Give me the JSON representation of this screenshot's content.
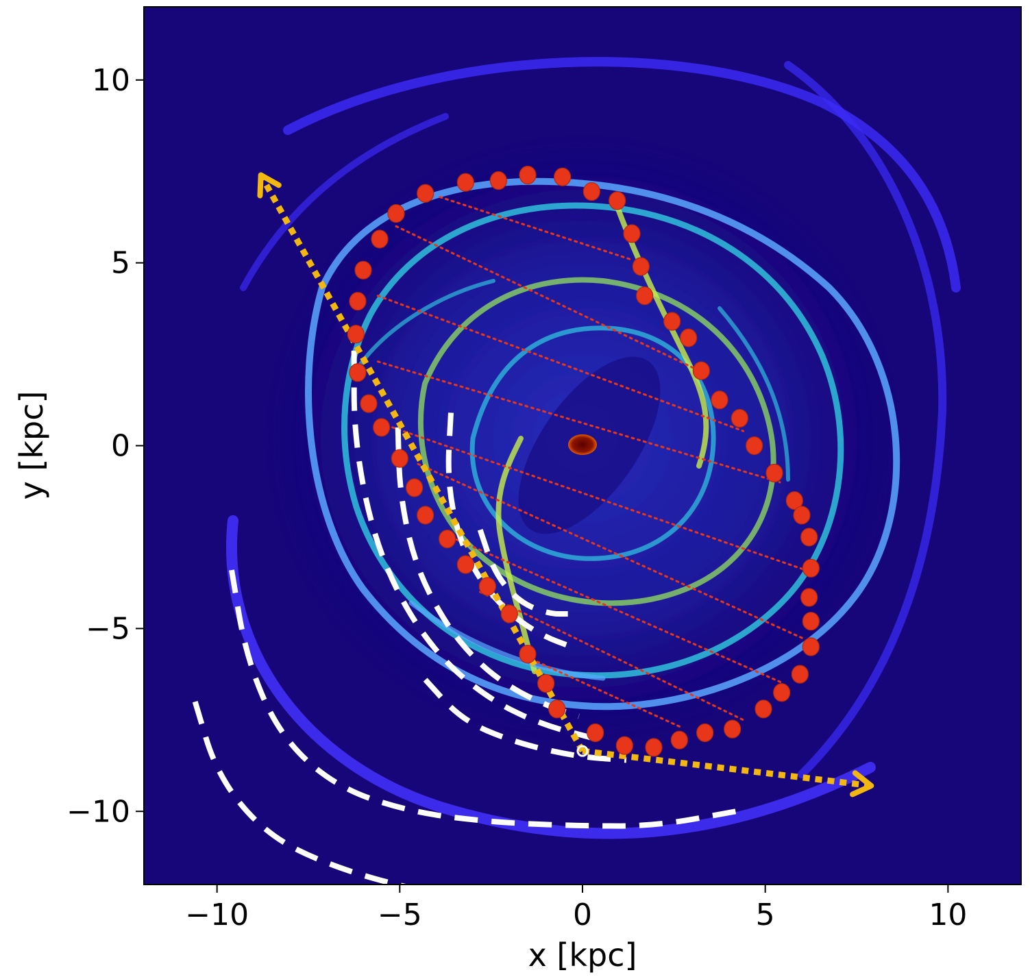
{
  "chart_data": {
    "type": "scatter",
    "title": "",
    "xlabel": "x [kpc]",
    "ylabel": "y [kpc]",
    "xlim": [
      -12,
      12
    ],
    "ylim": [
      -12,
      12
    ],
    "xticks": [
      -10,
      -5,
      0,
      5,
      10
    ],
    "yticks": [
      -10,
      -5,
      0,
      5,
      10
    ],
    "xtick_labels": [
      "−10",
      "−5",
      "0",
      "5",
      "10"
    ],
    "ytick_labels": [
      "−10",
      "−5",
      "0",
      "5",
      "10"
    ],
    "grid": false,
    "legend": "none",
    "colors": {
      "background": "#17057a",
      "arm": "#3b2bf5",
      "arm_glow": "#5aa8ff",
      "gas_cyan": "#33d9e8",
      "gas_green": "#9df05a",
      "markers": "#e8361a",
      "hatch": "#e8361a",
      "arrows": "#f2b711",
      "dashed_arcs": "#ffffff",
      "center": "#7a0a00"
    },
    "series": [
      {
        "type": "scatter",
        "marker": "filled-circle",
        "color": "#e8361a",
        "x": [
          -4.3,
          -3.2,
          -2.3,
          -1.5,
          -0.55,
          0.25,
          0.95,
          1.35,
          1.6,
          1.7,
          2.45,
          2.9,
          3.25,
          3.75,
          4.3,
          4.7,
          5.25,
          5.8,
          6.0,
          6.2,
          6.25,
          6.2,
          6.25,
          6.25,
          5.95,
          5.45,
          4.95,
          4.1,
          3.35,
          2.65,
          1.95,
          1.15,
          0.35,
          -0.7,
          -1.0,
          -1.5,
          -2.0,
          -2.6,
          -3.2,
          -3.7,
          -4.3,
          -4.6,
          -5.0,
          -5.5,
          -5.85,
          -6.15,
          -6.2,
          -6.15,
          -6.0,
          -5.55,
          -5.1
        ],
        "y": [
          6.9,
          7.2,
          7.25,
          7.4,
          7.35,
          6.95,
          6.7,
          5.8,
          4.9,
          4.1,
          3.4,
          2.95,
          2.05,
          1.25,
          0.75,
          0.0,
          -0.75,
          -1.5,
          -1.9,
          -2.5,
          -3.35,
          -4.15,
          -4.8,
          -5.5,
          -6.25,
          -6.75,
          -7.2,
          -7.75,
          -7.85,
          -8.05,
          -8.25,
          -8.2,
          -7.85,
          -7.2,
          -6.5,
          -5.7,
          -4.6,
          -3.85,
          -3.25,
          -2.55,
          -1.9,
          -1.15,
          -0.35,
          0.5,
          1.15,
          2.0,
          3.05,
          3.95,
          4.8,
          5.65,
          6.35
        ]
      },
      {
        "type": "line",
        "style": "dotted",
        "color": "#e8361a",
        "segments": [
          [
            [
              -3.9,
              6.8
            ],
            [
              1.3,
              5.1
            ]
          ],
          [
            [
              -5.1,
              6.0
            ],
            [
              3.3,
              2.0
            ]
          ],
          [
            [
              -5.6,
              4.1
            ],
            [
              4.4,
              0.4
            ]
          ],
          [
            [
              -5.6,
              2.3
            ],
            [
              5.4,
              -1.0
            ]
          ],
          [
            [
              -5.2,
              0.5
            ],
            [
              6.1,
              -3.4
            ]
          ],
          [
            [
              -4.5,
              -0.5
            ],
            [
              6.1,
              -5.3
            ]
          ],
          [
            [
              -3.6,
              -2.5
            ],
            [
              5.5,
              -6.5
            ]
          ],
          [
            [
              -2.8,
              -4.0
            ],
            [
              4.4,
              -7.5
            ]
          ],
          [
            [
              -1.7,
              -5.7
            ],
            [
              2.7,
              -7.7
            ]
          ]
        ]
      },
      {
        "type": "line",
        "style": "dotted-arrow",
        "color": "#f2b711",
        "segments": [
          [
            [
              0.0,
              -8.35
            ],
            [
              -8.8,
              7.4
            ]
          ],
          [
            [
              0.0,
              -8.35
            ],
            [
              7.9,
              -9.3
            ]
          ]
        ]
      },
      {
        "type": "line",
        "style": "dashed",
        "color": "#ffffff",
        "arcs_x": [
          [
            -9.6,
            -9.2,
            -8.3,
            -6.8,
            -4.8,
            -2.5,
            0.0,
            2.0,
            4.2
          ],
          [
            -6.25,
            -6.25,
            -5.8,
            -5.0,
            -3.9,
            -2.6,
            -1.2,
            0.3
          ],
          [
            -5.05,
            -5.0,
            -4.6,
            -3.8,
            -2.9,
            -2.0,
            -1.0,
            -0.1
          ],
          [
            -3.6,
            -3.7,
            -3.4,
            -2.8,
            -2.0,
            -1.1,
            -0.3
          ],
          [
            -2.8,
            -2.4,
            -1.7,
            -0.9,
            -0.4
          ],
          [
            -4.3,
            -3.3,
            -1.9,
            -0.2,
            1.2
          ],
          [
            -10.6,
            -10.0,
            -8.7,
            -6.9,
            -4.4,
            -2.7
          ]
        ],
        "arcs_y": [
          [
            -3.4,
            -5.8,
            -7.9,
            -9.3,
            -10.0,
            -10.3,
            -10.4,
            -10.4,
            -10.0
          ],
          [
            2.6,
            0.3,
            -2.2,
            -4.2,
            -5.8,
            -6.9,
            -7.6,
            -8.0
          ],
          [
            0.5,
            -1.3,
            -3.2,
            -4.8,
            -5.9,
            -6.6,
            -7.1,
            -7.4
          ],
          [
            0.9,
            -0.9,
            -2.5,
            -3.7,
            -4.6,
            -5.2,
            -5.5
          ],
          [
            -2.3,
            -3.5,
            -4.3,
            -4.6,
            -4.6
          ],
          [
            -6.4,
            -7.5,
            -8.1,
            -8.5,
            -8.6
          ],
          [
            -7.0,
            -9.0,
            -10.6,
            -11.5,
            -12.2,
            -12.3
          ]
        ]
      },
      {
        "type": "scatter",
        "marker": "ring",
        "color": "#ffffff",
        "x": [
          0.0
        ],
        "y": [
          -8.35
        ]
      }
    ]
  }
}
